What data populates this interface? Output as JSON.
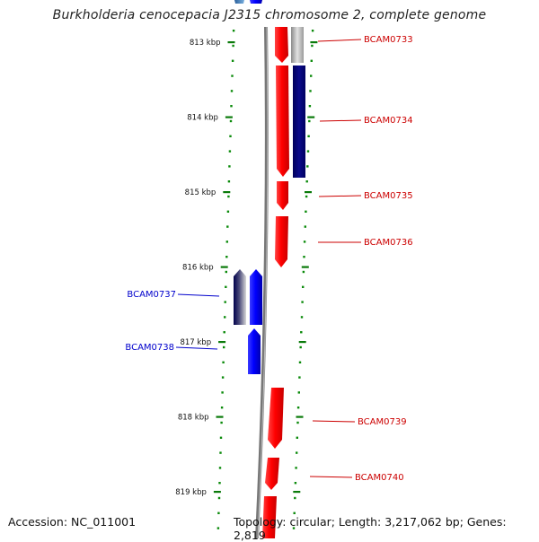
{
  "title": "Burkholderia cenocepacia J2315 chromosome 2, complete genome",
  "accession": "Accession: NC_011001",
  "summary": "Topology: circular; Length: 3,217,062 bp; Genes: 2,819",
  "ticks": [
    {
      "label": "813 kbp",
      "kbp": 813
    },
    {
      "label": "814 kbp",
      "kbp": 814
    },
    {
      "label": "815 kbp",
      "kbp": 815
    },
    {
      "label": "816 kbp",
      "kbp": 816
    },
    {
      "label": "817 kbp",
      "kbp": 817
    },
    {
      "label": "818 kbp",
      "kbp": 818
    },
    {
      "label": "819 kbp",
      "kbp": 819
    }
  ],
  "genes": [
    {
      "label": "BCAM0733",
      "strand": "forward",
      "color": "#cc0000"
    },
    {
      "label": "BCAM0734",
      "strand": "forward",
      "color": "#cc0000"
    },
    {
      "label": "BCAM0735",
      "strand": "forward",
      "color": "#cc0000"
    },
    {
      "label": "BCAM0736",
      "strand": "forward",
      "color": "#cc0000"
    },
    {
      "label": "BCAM0737",
      "strand": "reverse",
      "color": "#0000cc"
    },
    {
      "label": "BCAM0738",
      "strand": "reverse",
      "color": "#0000cc"
    },
    {
      "label": "BCAM0739",
      "strand": "forward",
      "color": "#cc0000"
    },
    {
      "label": "BCAM0740",
      "strand": "forward",
      "color": "#cc0000"
    }
  ]
}
